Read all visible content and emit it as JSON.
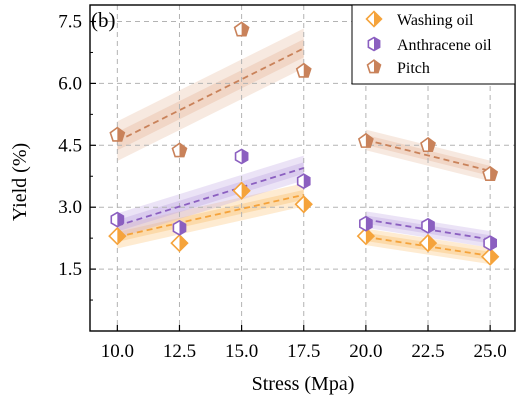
{
  "chart_data": {
    "type": "scatter",
    "panel_label": "(b)",
    "xlabel": "Stress (Mpa)",
    "ylabel": "Yield (%)",
    "xlim": [
      8.9,
      26.0
    ],
    "ylim": [
      0.0,
      7.9
    ],
    "x_ticks": [
      10.0,
      12.5,
      15.0,
      17.5,
      20.0,
      22.5,
      25.0
    ],
    "x_tick_labels": [
      "10.0",
      "12.5",
      "15.0",
      "17.5",
      "20.0",
      "22.5",
      "25.0"
    ],
    "y_ticks": [
      1.5,
      3.0,
      4.5,
      6.0,
      7.5
    ],
    "y_tick_labels": [
      "1.5",
      "3.0",
      "4.5",
      "6.0",
      "7.5"
    ],
    "grid": true,
    "legend_position": "top-right",
    "series": [
      {
        "name": "Washing oil",
        "marker": "diamond",
        "color": "#f5a33b",
        "band_color": "#fbc57a",
        "points": [
          [
            10.0,
            2.3
          ],
          [
            12.5,
            2.13
          ],
          [
            15.0,
            3.4
          ],
          [
            17.5,
            3.07
          ],
          [
            20.0,
            2.3
          ],
          [
            22.5,
            2.13
          ],
          [
            25.0,
            1.8
          ]
        ],
        "fits": [
          {
            "x": [
              10.0,
              17.5
            ],
            "y": [
              2.28,
              3.3
            ],
            "band_inner": 0.12,
            "band_outer": 0.28
          },
          {
            "x": [
              20.0,
              25.0
            ],
            "y": [
              2.28,
              1.82
            ],
            "band_inner": 0.1,
            "band_outer": 0.2
          }
        ]
      },
      {
        "name": "Anthracene oil",
        "marker": "hexagon",
        "color": "#8b5fc0",
        "band_color": "#c6b0e4",
        "points": [
          [
            10.0,
            2.7
          ],
          [
            12.5,
            2.5
          ],
          [
            15.0,
            4.23
          ],
          [
            17.5,
            3.63
          ],
          [
            20.0,
            2.6
          ],
          [
            22.5,
            2.55
          ],
          [
            25.0,
            2.13
          ]
        ],
        "fits": [
          {
            "x": [
              10.0,
              17.5
            ],
            "y": [
              2.55,
              3.95
            ],
            "band_inner": 0.14,
            "band_outer": 0.3
          },
          {
            "x": [
              20.0,
              25.0
            ],
            "y": [
              2.7,
              2.22
            ],
            "band_inner": 0.1,
            "band_outer": 0.2
          }
        ]
      },
      {
        "name": "Pitch",
        "marker": "pentagon",
        "color": "#c9825a",
        "band_color": "#e8bfa6",
        "points": [
          [
            10.0,
            4.75
          ],
          [
            12.5,
            4.37
          ],
          [
            15.0,
            7.3
          ],
          [
            17.5,
            6.3
          ],
          [
            20.0,
            4.6
          ],
          [
            22.5,
            4.5
          ],
          [
            25.0,
            3.8
          ]
        ],
        "fits": [
          {
            "x": [
              10.0,
              17.5
            ],
            "y": [
              4.6,
              6.85
            ],
            "band_inner": 0.22,
            "band_outer": 0.48
          },
          {
            "x": [
              20.0,
              25.0
            ],
            "y": [
              4.63,
              3.88
            ],
            "band_inner": 0.12,
            "band_outer": 0.25
          }
        ]
      }
    ]
  }
}
